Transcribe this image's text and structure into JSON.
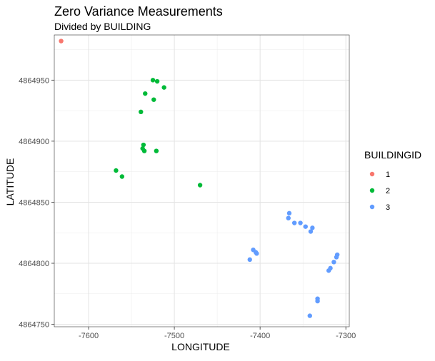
{
  "chart_data": {
    "type": "scatter",
    "title": "Zero Variance Measurements",
    "subtitle": "Divided by BUILDING",
    "xlabel": "LONGITUDE",
    "ylabel": "LATITUDE",
    "xlim": [
      -7640,
      -7296
    ],
    "ylim": [
      4864748,
      4864987
    ],
    "xticks": [
      -7600,
      -7500,
      -7400,
      -7300
    ],
    "xtick_labels": [
      "-7600",
      "-7500",
      "-7400",
      "-7300"
    ],
    "yticks": [
      4864750,
      4864800,
      4864850,
      4864900,
      4864950
    ],
    "ytick_labels": [
      "4864750",
      "4864800",
      "4864850",
      "4864900",
      "4864950"
    ],
    "grid": true,
    "legend": {
      "title": "BUILDINGID",
      "placement": "right"
    },
    "series": [
      {
        "name": "1",
        "color": "#F8766D",
        "points": [
          [
            -7632,
            4864982
          ]
        ]
      },
      {
        "name": "2",
        "color": "#00BA38",
        "points": [
          [
            -7525,
            4864950
          ],
          [
            -7520,
            4864949
          ],
          [
            -7512,
            4864944
          ],
          [
            -7534,
            4864939
          ],
          [
            -7524,
            4864934
          ],
          [
            -7539,
            4864924
          ],
          [
            -7536,
            4864897
          ],
          [
            -7537,
            4864894
          ],
          [
            -7535,
            4864892
          ],
          [
            -7521,
            4864892
          ],
          [
            -7568,
            4864876
          ],
          [
            -7561,
            4864871
          ],
          [
            -7470,
            4864864
          ]
        ]
      },
      {
        "name": "3",
        "color": "#619CFF",
        "points": [
          [
            -7366,
            4864841
          ],
          [
            -7367,
            4864837
          ],
          [
            -7360,
            4864833
          ],
          [
            -7353,
            4864833
          ],
          [
            -7347,
            4864830
          ],
          [
            -7339,
            4864829
          ],
          [
            -7341,
            4864826
          ],
          [
            -7408,
            4864811
          ],
          [
            -7405,
            4864809
          ],
          [
            -7404,
            4864808
          ],
          [
            -7412,
            4864803
          ],
          [
            -7310,
            4864807
          ],
          [
            -7311,
            4864805
          ],
          [
            -7314,
            4864801
          ],
          [
            -7318,
            4864796
          ],
          [
            -7320,
            4864794
          ],
          [
            -7333,
            4864771
          ],
          [
            -7333,
            4864769
          ],
          [
            -7342,
            4864757
          ]
        ]
      }
    ]
  }
}
